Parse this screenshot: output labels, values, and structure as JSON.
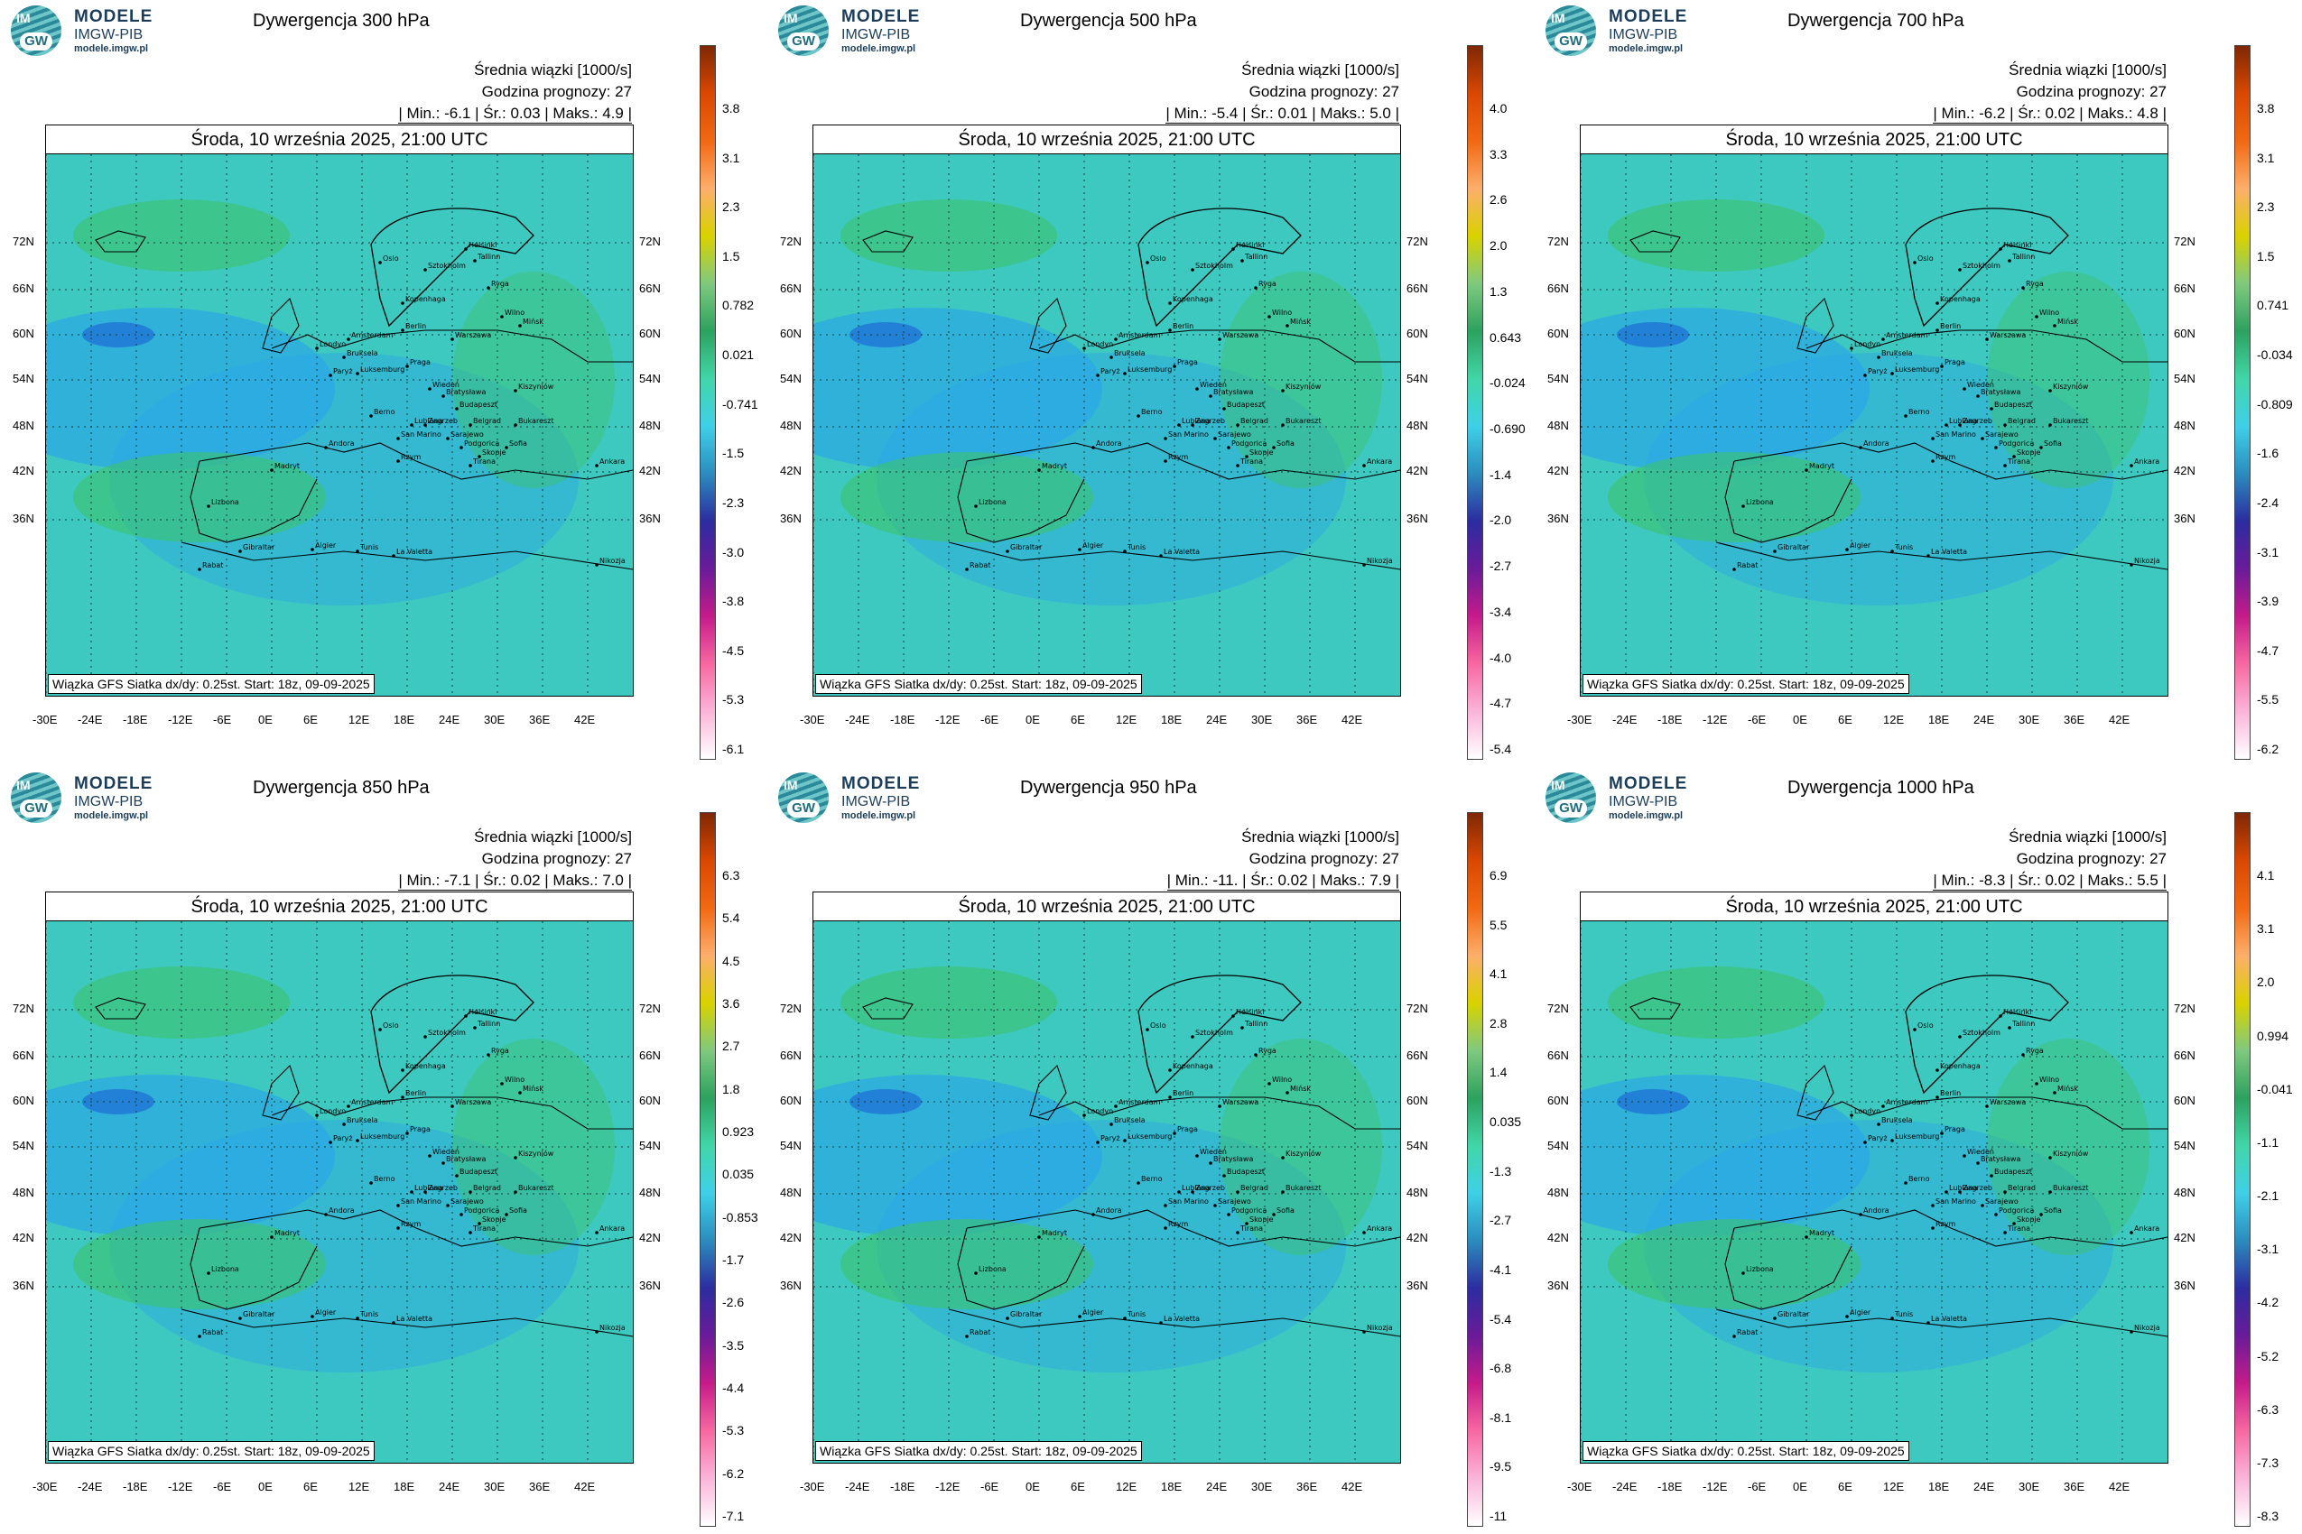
{
  "logo": {
    "line1": "MODELE",
    "line2": "IMGW-PIB",
    "line3": "modele.imgw.pl",
    "im": "IM",
    "gw": "GW"
  },
  "common": {
    "info1": "Średnia wiązki [1000/s]",
    "info2": "Godzina prognozy: 27",
    "date": "Środa, 10 września 2025, 21:00 UTC",
    "credit": "Wiązka GFS Siatka dx/dy: 0.25st. Start: 18z, 09-09-2025",
    "lat_labels": [
      "72N",
      "66N",
      "60N",
      "54N",
      "48N",
      "42N",
      "36N"
    ],
    "lon_labels": [
      "-30E",
      "-24E",
      "-18E",
      "-12E",
      "-6E",
      "0E",
      "6E",
      "12E",
      "18E",
      "24E",
      "30E",
      "36E",
      "42E"
    ]
  },
  "panels": [
    {
      "title": "Dywergencja 300 hPa",
      "stats": "| Min.: -6.1 | Śr.: 0.03 | Maks.: 4.9 |",
      "ticks": [
        "3.8",
        "3.1",
        "2.3",
        "1.5",
        "0.782",
        "0.021",
        "-0.741",
        "-1.5",
        "-2.3",
        "-3.0",
        "-3.8",
        "-4.5",
        "-5.3",
        "-6.1"
      ]
    },
    {
      "title": "Dywergencja 500 hPa",
      "stats": "| Min.: -5.4 | Śr.: 0.01 | Maks.: 5.0 |",
      "ticks": [
        "4.0",
        "3.3",
        "2.6",
        "2.0",
        "1.3",
        "0.643",
        "-0.024",
        "-0.690",
        "-1.4",
        "-2.0",
        "-2.7",
        "-3.4",
        "-4.0",
        "-4.7",
        "-5.4"
      ]
    },
    {
      "title": "Dywergencja 700 hPa",
      "stats": "| Min.: -6.2 | Śr.: 0.02 | Maks.: 4.8 |",
      "ticks": [
        "3.8",
        "3.1",
        "2.3",
        "1.5",
        "0.741",
        "-0.034",
        "-0.809",
        "-1.6",
        "-2.4",
        "-3.1",
        "-3.9",
        "-4.7",
        "-5.5",
        "-6.2"
      ]
    },
    {
      "title": "Dywergencja 850 hPa",
      "stats": "| Min.: -7.1 | Śr.: 0.02 | Maks.: 7.0 |",
      "ticks": [
        "6.3",
        "5.4",
        "4.5",
        "3.6",
        "2.7",
        "1.8",
        "0.923",
        "0.035",
        "-0.853",
        "-1.7",
        "-2.6",
        "-3.5",
        "-4.4",
        "-5.3",
        "-6.2",
        "-7.1"
      ]
    },
    {
      "title": "Dywergencja 950 hPa",
      "stats": "| Min.: -11. | Śr.: 0.02 | Maks.: 7.9 |",
      "ticks": [
        "6.9",
        "5.5",
        "4.1",
        "2.8",
        "1.4",
        "0.035",
        "-1.3",
        "-2.7",
        "-4.1",
        "-5.4",
        "-6.8",
        "-8.1",
        "-9.5",
        "-11"
      ]
    },
    {
      "title": "Dywergencja 1000 hPa",
      "stats": "| Min.: -8.3 | Śr.: 0.02 | Maks.: 5.5 |",
      "ticks": [
        "4.1",
        "3.1",
        "2.0",
        "0.994",
        "-0.041",
        "-1.1",
        "-2.1",
        "-3.1",
        "-4.2",
        "-5.2",
        "-6.3",
        "-7.3",
        "-8.3"
      ]
    }
  ],
  "cities": [
    "Oslo",
    "Helsinki",
    "Tallinn",
    "Sztokholm",
    "Ryga",
    "Wilno",
    "Mińsk",
    "Kopenhaga",
    "Amsterdam",
    "Berlin",
    "Warszawa",
    "Londyn",
    "Bruksela",
    "Paryż",
    "Luksemburg",
    "Praga",
    "Wiedeń",
    "Kiszyniów",
    "Bratysława",
    "Budapeszt",
    "Zagrzeb",
    "Berno",
    "Lublana",
    "Belgrad",
    "Bukareszt",
    "Sarajewo",
    "Podgorica",
    "Skopje",
    "Sofia",
    "Tirana",
    "Andora",
    "San Marino",
    "Rzym",
    "Ankara",
    "Madryt",
    "Lizbona",
    "Gibraltar",
    "Algier",
    "Tunis",
    "La Valetta",
    "Rabat",
    "Nikozja"
  ],
  "colors": {
    "cbar": [
      "#7f2704",
      "#d94801",
      "#f16913",
      "#fdae6b",
      "#d9d200",
      "#7fc97f",
      "#2ca25f",
      "#41d6a8",
      "#3fd0e8",
      "#2b8cbe",
      "#2c2ca0",
      "#6a1b9a",
      "#c51b8a",
      "#f768a1",
      "#fbb4d9",
      "#ffffff"
    ],
    "map_bg": "#3ec9c0",
    "blue": "#2aa6e6",
    "green": "#3cc36b",
    "dark_blue": "#1b5fd4"
  }
}
